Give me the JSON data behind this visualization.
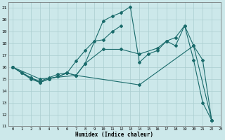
{
  "xlabel": "Humidex (Indice chaleur)",
  "xlim": [
    -0.5,
    23
  ],
  "ylim": [
    11,
    21.5
  ],
  "yticks": [
    11,
    12,
    13,
    14,
    15,
    16,
    17,
    18,
    19,
    20,
    21
  ],
  "xticks": [
    0,
    1,
    2,
    3,
    4,
    5,
    6,
    7,
    8,
    9,
    10,
    11,
    12,
    13,
    14,
    15,
    16,
    17,
    18,
    19,
    20,
    21,
    22,
    23
  ],
  "bg_color": "#cce8ea",
  "grid_color": "#aacdd0",
  "line_color": "#1a6b6b",
  "line1_x": [
    0,
    1,
    2,
    3,
    4,
    5,
    6,
    7,
    8,
    10,
    11,
    12,
    13,
    14,
    15,
    16,
    17,
    18,
    19,
    20,
    21,
    22
  ],
  "line1_y": [
    16.0,
    15.5,
    15.0,
    14.7,
    15.0,
    15.2,
    15.5,
    15.3,
    16.3,
    19.9,
    20.3,
    20.6,
    21.1,
    16.4,
    17.1,
    17.4,
    18.2,
    17.8,
    19.5,
    16.6,
    13.0,
    11.5
  ],
  "line2_x": [
    0,
    1,
    2,
    3,
    4,
    5,
    6,
    7,
    8,
    9,
    10,
    11,
    12
  ],
  "line2_y": [
    16.0,
    15.5,
    15.1,
    14.8,
    15.1,
    15.4,
    15.5,
    16.5,
    17.4,
    18.2,
    18.3,
    19.0,
    19.5
  ],
  "line3_x": [
    0,
    2,
    3,
    4,
    5,
    6,
    7,
    8,
    10,
    12,
    14,
    16,
    17,
    18,
    19,
    20,
    21,
    22
  ],
  "line3_y": [
    16.0,
    15.1,
    14.7,
    15.0,
    15.2,
    15.5,
    15.3,
    16.3,
    17.5,
    17.5,
    17.1,
    17.6,
    18.2,
    18.5,
    19.5,
    17.8,
    16.6,
    11.5
  ],
  "line4_x": [
    0,
    3,
    7,
    14,
    20,
    22
  ],
  "line4_y": [
    16.0,
    15.0,
    15.3,
    14.5,
    17.8,
    11.5
  ]
}
